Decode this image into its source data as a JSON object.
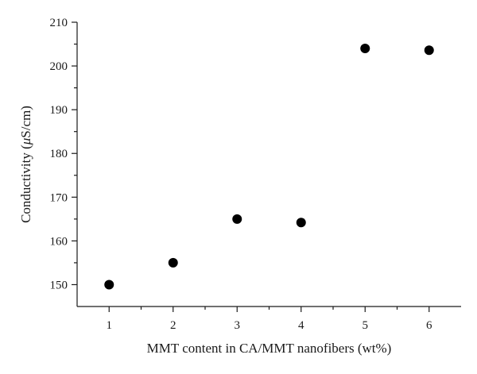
{
  "chart_data": {
    "type": "scatter",
    "title": "",
    "xlabel": "MMT content in CA/MMT nanofibers (wt%)",
    "ylabel_prefix": "Conductivity (",
    "ylabel_mu": "μ",
    "ylabel_suffix": "S/cm)",
    "xlim": [
      0.5,
      6.5
    ],
    "ylim": [
      145,
      210
    ],
    "x_ticks": [
      1,
      2,
      3,
      4,
      5,
      6
    ],
    "y_ticks": [
      150,
      160,
      170,
      180,
      190,
      200,
      210
    ],
    "x_minor_ticks": [
      1.5,
      2.5,
      3.5,
      4.5,
      5.5
    ],
    "y_minor_ticks": [
      155,
      165,
      175,
      185,
      195,
      205
    ],
    "grid": false,
    "series": [
      {
        "x": [
          1,
          2,
          3,
          4,
          5,
          6
        ],
        "y": [
          150,
          155,
          165,
          164.2,
          204,
          203.6
        ]
      }
    ]
  }
}
